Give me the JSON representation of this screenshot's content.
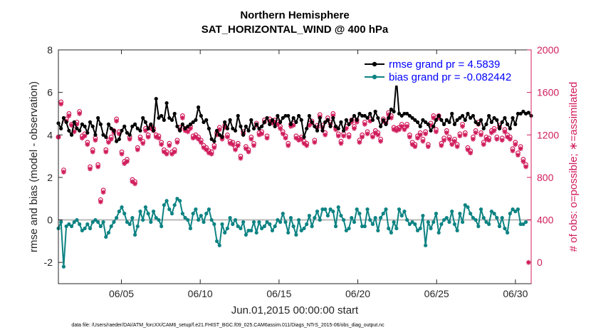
{
  "chart_data": {
    "type": "line",
    "title": "Northern Hemisphere",
    "subtitle": "SAT_HORIZONTAL_WIND @ 400 hPa",
    "xlabel": "Jun.01,2015 00:00:00 start",
    "ylabel": "rmse and bias (model - observation)",
    "y2label": "# of obs: o=possible; ∗=assimilated",
    "footnote": "data file: /Users/raeder/DAI/ATM_forcXX/CAM6_setup/f.e21.FHIST_BGC.f09_025.CAM6assim.011/Diags_NTrS_2015-06/obs_diag_output.nc",
    "xlim": [
      1,
      31
    ],
    "ylim": [
      -3,
      8
    ],
    "y2lim": [
      -200,
      2000
    ],
    "xticks": [
      5,
      10,
      15,
      20,
      25,
      30
    ],
    "xtick_labels": [
      "06/05",
      "06/10",
      "06/15",
      "06/20",
      "06/25",
      "06/30"
    ],
    "yticks": [
      -2,
      0,
      2,
      4,
      6,
      8
    ],
    "ytick_labels": [
      "-2",
      "0",
      "2",
      "4",
      "6",
      "8"
    ],
    "y2ticks": [
      0,
      400,
      800,
      1200,
      1600,
      2000
    ],
    "y2tick_labels": [
      "0",
      "400",
      "800",
      "1200",
      "1600",
      "2000"
    ],
    "zero_line": 0,
    "legend": [
      "rmse grand pr = 4.5839",
      "bias grand pr = -0.082442"
    ],
    "legend_position": "top-right",
    "colors": {
      "rmse": "#000000",
      "bias": "#0e8383",
      "obs": "#d01c5b",
      "zero": "#b8b8b8"
    },
    "series": [
      {
        "name": "rmse",
        "color": "#000000",
        "values": [
          4.55,
          4.3,
          4.8,
          4.6,
          4.2,
          4.0,
          4.6,
          4.3,
          4.2,
          4.5,
          4.4,
          4.1,
          4.6,
          4.4,
          4.0,
          4.8,
          4.5,
          4.0,
          3.9,
          4.5,
          4.3,
          4.2,
          3.7,
          3.8,
          4.2,
          4.4,
          4.1,
          4.0,
          4.4,
          4.5,
          4.3,
          4.2,
          4.8,
          4.6,
          4.3,
          4.5,
          4.2,
          5.7,
          4.8,
          4.9,
          4.7,
          5.5,
          4.8,
          4.7,
          5.0,
          4.4,
          4.2,
          4.5,
          4.3,
          4.4,
          4.5,
          4.6,
          4.7,
          5.3,
          4.9,
          4.6,
          4.7,
          4.3,
          3.8,
          3.7,
          4.2,
          4.0,
          3.9,
          4.6,
          4.3,
          4.7,
          4.3,
          4.2,
          4.9,
          4.4,
          4.0,
          4.4,
          4.2,
          4.7,
          4.3,
          4.5,
          4.3,
          4.4,
          4.6,
          4.8,
          4.5,
          4.7,
          4.4,
          4.9,
          4.6,
          4.8,
          4.9,
          4.9,
          4.5,
          4.8,
          4.6,
          4.9,
          4.7,
          3.9,
          4.3,
          4.9,
          4.6,
          4.4,
          4.2,
          4.8,
          4.2,
          4.6,
          4.7,
          4.4,
          4.8,
          4.4,
          4.3,
          4.6,
          4.2,
          4.7,
          4.5,
          4.7,
          4.9,
          4.7,
          5.0,
          4.9,
          4.9,
          4.8,
          5.0,
          4.7,
          5.1,
          4.8,
          4.4,
          4.7,
          4.5,
          4.8,
          5.2,
          5.1,
          6.6,
          5.0,
          4.9,
          5.0,
          5.0,
          4.9,
          4.8,
          4.7,
          4.6,
          4.4,
          4.7,
          4.6,
          4.5,
          4.2,
          4.4,
          4.7,
          4.9,
          4.7,
          4.5,
          4.7,
          4.6,
          5.0,
          4.5,
          4.7,
          4.8,
          4.9,
          4.7,
          5.0,
          4.8,
          4.9,
          4.6,
          4.5,
          4.7,
          4.3,
          4.5,
          4.9,
          4.6,
          4.8,
          4.7,
          4.3,
          4.6,
          4.8,
          4.5,
          4.3,
          4.8,
          4.5,
          5.0,
          5.0,
          5.1,
          5.0,
          5.05,
          4.9
        ]
      },
      {
        "name": "bias",
        "color": "#0e8383",
        "values": [
          -0.4,
          -0.1,
          -2.2,
          -0.3,
          -0.2,
          -0.3,
          -0.1,
          0.0,
          -0.2,
          -0.5,
          -0.4,
          -0.2,
          -0.4,
          -0.1,
          0.0,
          -0.1,
          -0.3,
          -0.1,
          -0.8,
          -0.6,
          -0.3,
          -0.1,
          0.1,
          0.4,
          0.6,
          0.3,
          -0.1,
          -0.2,
          0.1,
          -0.7,
          -0.3,
          0.4,
          0.0,
          0.6,
          0.3,
          -0.1,
          0.4,
          0.1,
          0.0,
          -0.3,
          0.7,
          0.9,
          0.5,
          0.3,
          0.7,
          1.0,
          0.9,
          0.3,
          0.1,
          0.0,
          -0.4,
          0.3,
          0.5,
          0.0,
          0.2,
          -0.1,
          0.3,
          0.5,
          0.0,
          -0.2,
          -1.0,
          -1.2,
          -0.2,
          -0.6,
          -0.4,
          0.1,
          -0.2,
          0.0,
          -0.3,
          -0.4,
          -0.1,
          -0.7,
          -0.5,
          -0.5,
          -0.1,
          -0.6,
          -0.1,
          -0.4,
          -0.3,
          -0.1,
          -0.2,
          -0.5,
          -0.3,
          0.0,
          -0.1,
          0.3,
          -0.1,
          -0.6,
          0.1,
          -0.3,
          -0.7,
          0.0,
          -0.5,
          -0.4,
          -0.2,
          0.2,
          -0.3,
          0.1,
          0.4,
          0.0,
          0.5,
          0.5,
          0.2,
          0.5,
          0.4,
          -0.3,
          0.6,
          0.2,
          0.0,
          -0.5,
          -0.4,
          0.1,
          -0.1,
          0.5,
          0.3,
          -0.3,
          -0.3,
          0.5,
          0.0,
          -0.2,
          0.1,
          -0.5,
          0.1,
          0.3,
          0.5,
          -0.4,
          -0.6,
          -0.1,
          -0.4,
          0.5,
          0.2,
          0.4,
          0.0,
          -0.2,
          -0.1,
          -0.2,
          -0.5,
          -0.4,
          0.2,
          -1.2,
          -0.1,
          -0.4,
          -0.1,
          0.3,
          -0.6,
          -0.2,
          0.0,
          0.1,
          -0.1,
          0.4,
          -0.2,
          -0.5,
          0.3,
          -0.1,
          0.7,
          0.6,
          0.3,
          0.1,
          0.0,
          -0.3,
          0.5,
          0.1,
          -0.1,
          -0.2,
          0.4,
          0.3,
          0.1,
          -0.3,
          0.1,
          -0.4,
          -0.6,
          0.3,
          0.5,
          0.4,
          0.5,
          -0.2,
          -0.2,
          -0.1
        ]
      },
      {
        "name": "obs_possible",
        "color": "#d01c5b",
        "marker": "o",
        "axis": "right",
        "values": [
          1180,
          1510,
          870,
          1350,
          1400,
          1300,
          1250,
          1320,
          1420,
          1190,
          1210,
          1130,
          900,
          1060,
          1170,
          920,
          590,
          680,
          1060,
          1150,
          1180,
          1240,
          1350,
          1230,
          1040,
          950,
          970,
          1180,
          780,
          760,
          1080,
          1180,
          1140,
          1260,
          1200,
          1280,
          1260,
          1200,
          1190,
          1130,
          1060,
          1040,
          1120,
          1040,
          1060,
          1150,
          1270,
          1380,
          1260,
          1250,
          1280,
          1190,
          1200,
          1180,
          1150,
          1100,
          1080,
          1050,
          1040,
          1100,
          1220,
          1270,
          1180,
          1290,
          1200,
          1140,
          1130,
          1080,
          1120,
          1000,
          1230,
          1090,
          1060,
          1180,
          1120,
          1310,
          1220,
          1230,
          1340,
          1190,
          1350,
          1330,
          1340,
          1320,
          1280,
          1230,
          1190,
          1120,
          1300,
          1310,
          1190,
          1170,
          1180,
          1140,
          1120,
          1310,
          1330,
          1150,
          1290,
          1390,
          1290,
          1220,
          1360,
          1320,
          1400,
          1270,
          1210,
          1140,
          1210,
          1280,
          1200,
          1340,
          1280,
          1340,
          1150,
          1200,
          1320,
          1230,
          1350,
          1200,
          1240,
          1220,
          1160,
          1350,
          1330,
          1410,
          1380,
          1270,
          1260,
          1270,
          1300,
          1270,
          1300,
          1200,
          1130,
          1110,
          1190,
          1220,
          1160,
          1230,
          1110,
          1310,
          1380,
          1250,
          1380,
          1120,
          1170,
          1240,
          1180,
          1130,
          1160,
          1110,
          1210,
          1300,
          1220,
          1080,
          1050,
          1180,
          1240,
          1320,
          1220,
          1130,
          1180,
          1170,
          1240,
          1260,
          1180,
          1290,
          1170,
          1250,
          1200,
          1180,
          1070,
          1130,
          1030,
          1090,
          970,
          920
        ]
      },
      {
        "name": "obs_assimilated",
        "color": "#d01c5b",
        "marker": "*",
        "axis": "right",
        "values": [
          1180,
          1490,
          850,
          1330,
          1380,
          1290,
          1230,
          1300,
          1400,
          1170,
          1190,
          1110,
          880,
          1040,
          1150,
          900,
          570,
          660,
          1040,
          1130,
          1160,
          1220,
          1330,
          1210,
          1020,
          930,
          950,
          1160,
          760,
          740,
          1060,
          1160,
          1120,
          1240,
          1180,
          1260,
          1240,
          1180,
          1170,
          1110,
          1040,
          1020,
          1100,
          1020,
          1040,
          1130,
          1250,
          1360,
          1240,
          1230,
          1260,
          1170,
          1180,
          1160,
          1130,
          1080,
          1060,
          1030,
          1020,
          1080,
          1200,
          1250,
          1160,
          1270,
          1180,
          1120,
          1110,
          1060,
          1100,
          980,
          1210,
          1070,
          1040,
          1160,
          1100,
          1290,
          1200,
          1210,
          1320,
          1170,
          1330,
          1310,
          1320,
          1300,
          1260,
          1210,
          1170,
          1100,
          1280,
          1290,
          1170,
          1150,
          1160,
          1120,
          1100,
          1290,
          1310,
          1130,
          1270,
          1370,
          1270,
          1200,
          1340,
          1300,
          1380,
          1250,
          1190,
          1120,
          1190,
          1260,
          1180,
          1320,
          1260,
          1320,
          1130,
          1180,
          1300,
          1210,
          1330,
          1180,
          1220,
          1200,
          1140,
          1330,
          1310,
          1390,
          1360,
          1250,
          1240,
          1250,
          1280,
          1250,
          1280,
          1180,
          1110,
          1090,
          1170,
          1200,
          1140,
          1210,
          1090,
          1290,
          1360,
          1230,
          1360,
          1100,
          1150,
          1220,
          1160,
          1110,
          1140,
          1090,
          1190,
          1280,
          1200,
          1060,
          1030,
          1160,
          1220,
          1300,
          1200,
          1110,
          1160,
          1150,
          1220,
          1240,
          1160,
          1270,
          1150,
          1230,
          1180,
          1160,
          1050,
          1110,
          1010,
          1070,
          950,
          900,
          0
        ]
      }
    ]
  }
}
